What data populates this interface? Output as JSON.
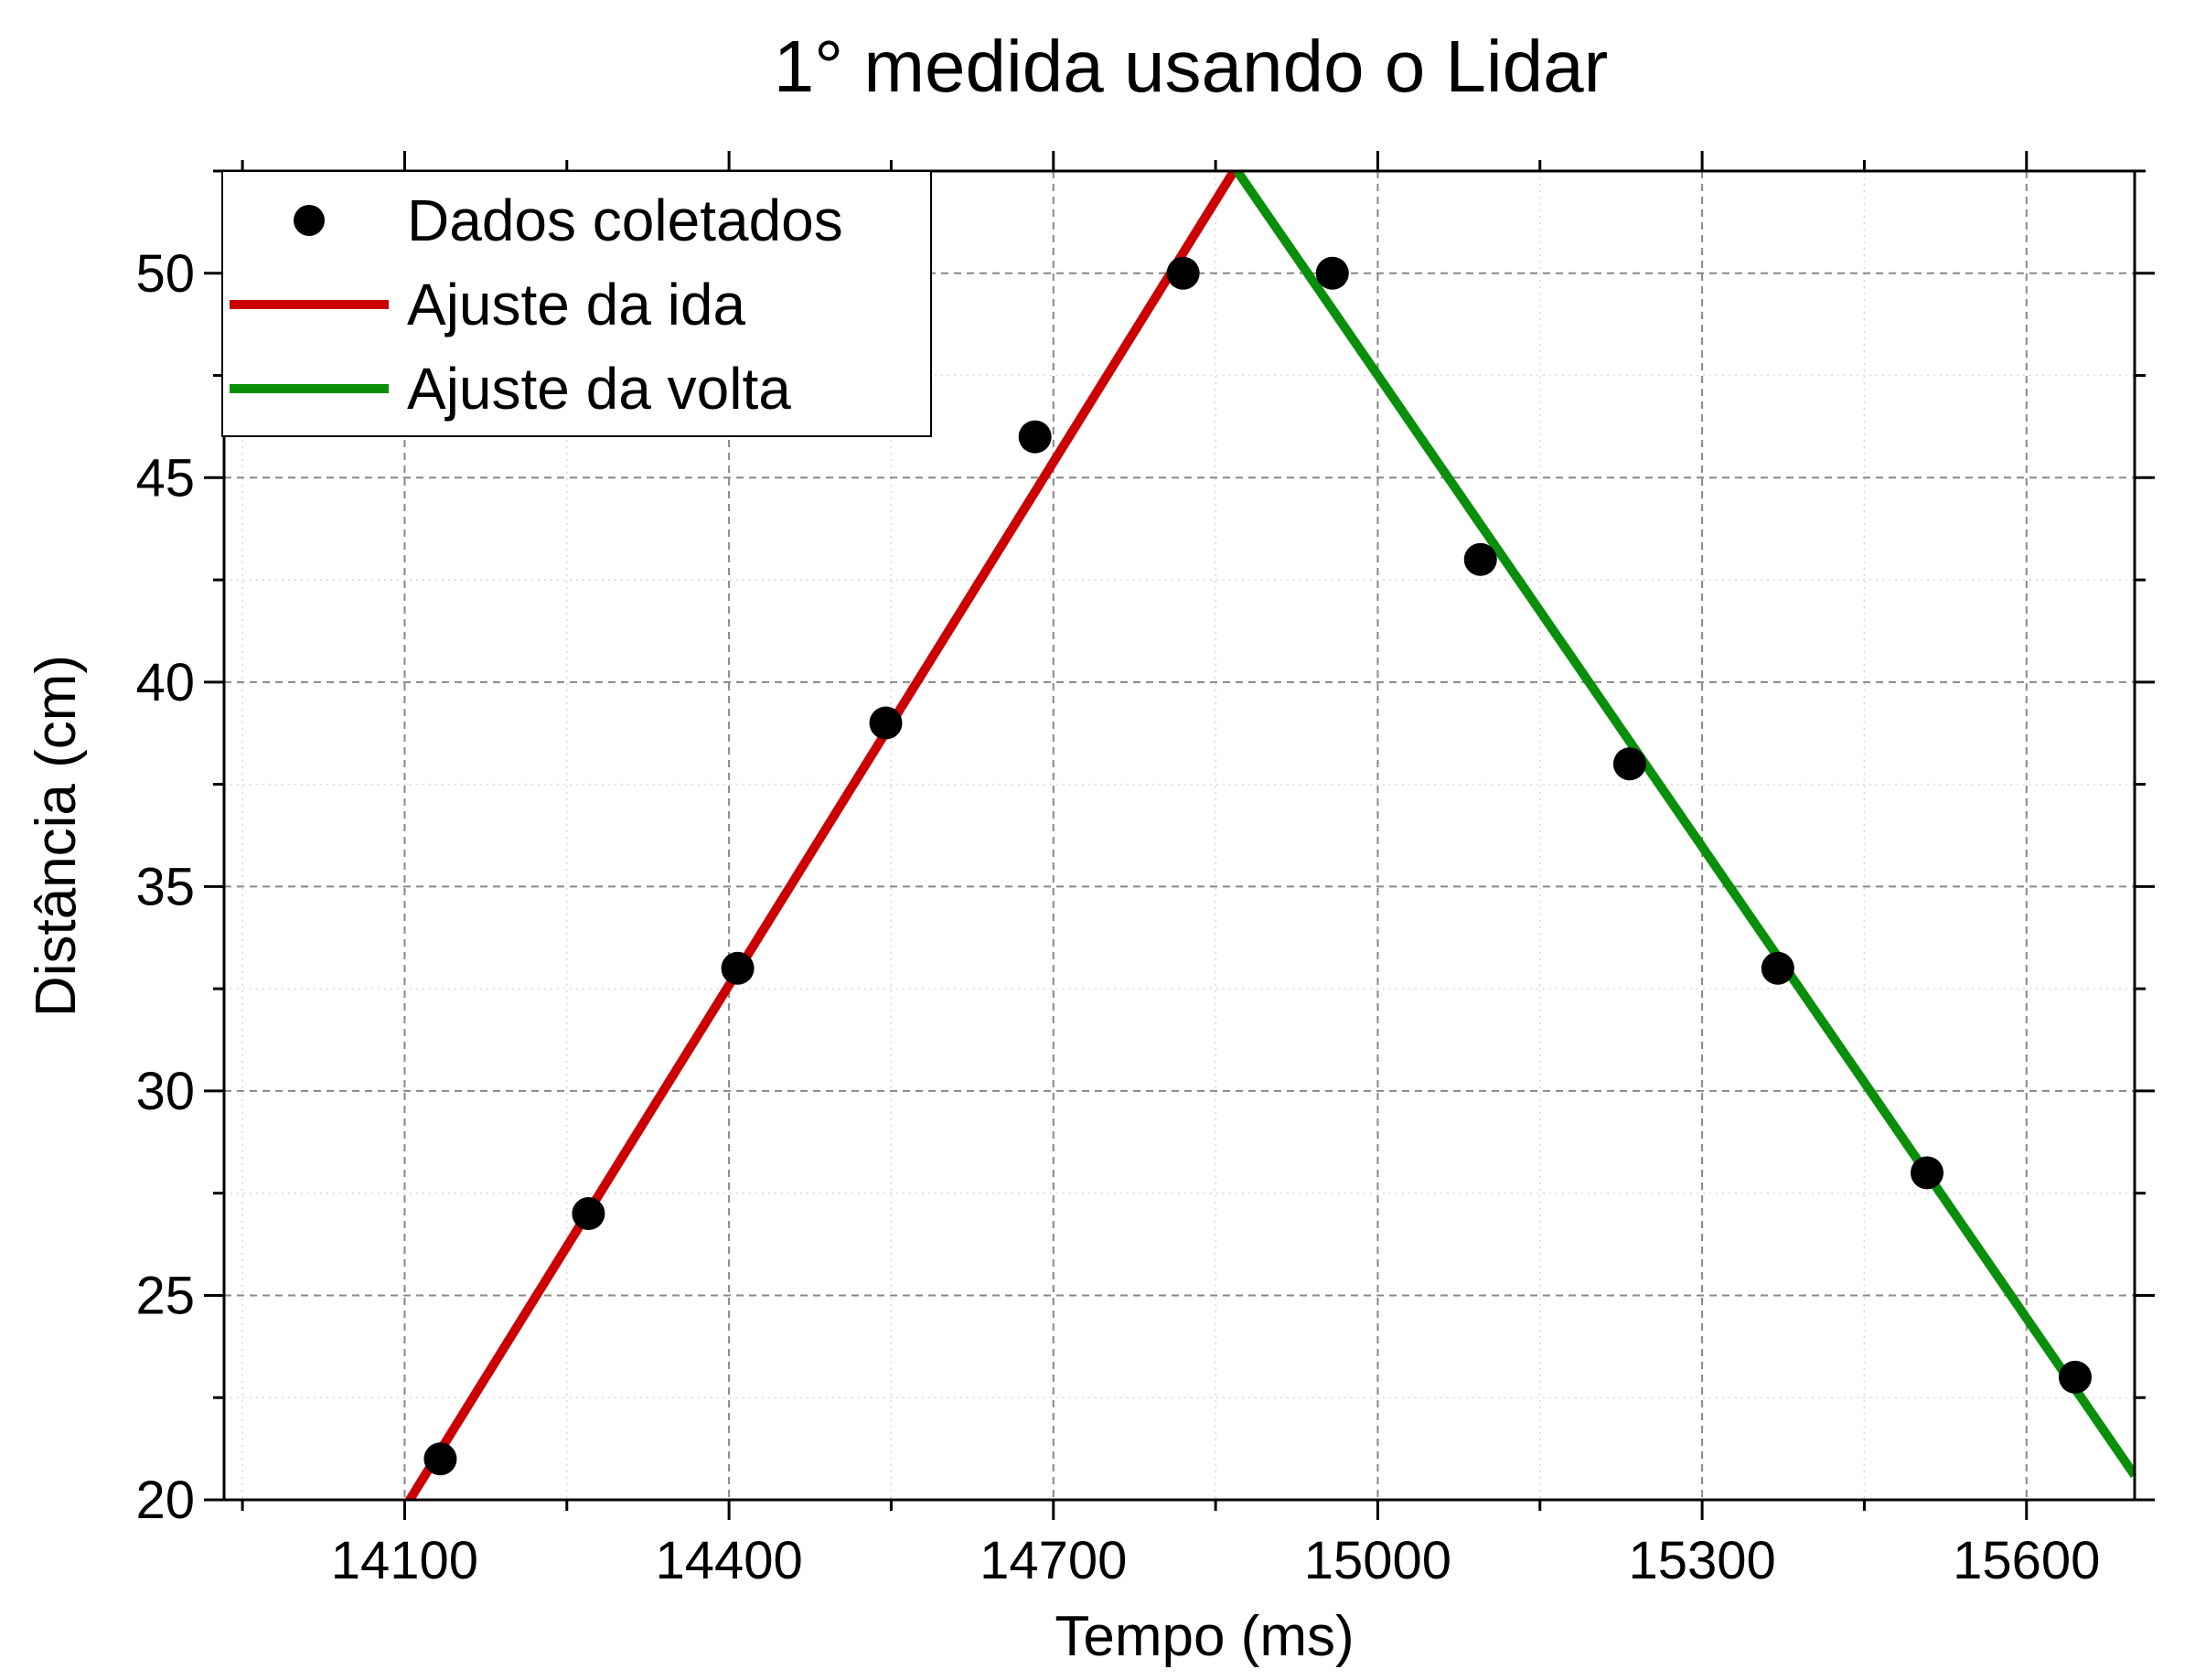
{
  "chart_data": {
    "type": "scatter",
    "title": "1° medida usando o Lidar",
    "xlabel": "Tempo (ms)",
    "ylabel": "Distância (cm)",
    "xlim": [
      13933,
      15700
    ],
    "ylim": [
      20,
      52.5
    ],
    "xticks": [
      14100,
      14400,
      14700,
      15000,
      15300,
      15600
    ],
    "yticks": [
      20,
      25,
      30,
      35,
      40,
      45,
      50
    ],
    "grid": true,
    "legend_position": "top-left",
    "series": [
      {
        "name": "Dados coletados",
        "kind": "points",
        "color": "#000000",
        "x": [
          14133,
          14270,
          14408,
          14545,
          14683,
          14820,
          14958,
          15095,
          15233,
          15370,
          15508,
          15645
        ],
        "y": [
          21,
          27,
          33,
          39,
          46,
          50,
          50,
          43,
          38,
          33,
          28,
          23
        ]
      },
      {
        "name": "Ajuste da ida",
        "kind": "line",
        "color": "#cc0000",
        "x": [
          14100,
          14867
        ],
        "y": [
          19.8,
          52.5
        ]
      },
      {
        "name": "Ajuste da volta",
        "kind": "line",
        "color": "#0a8f0a",
        "x": [
          14870,
          15700
        ],
        "y": [
          52.5,
          20.6
        ]
      }
    ]
  }
}
